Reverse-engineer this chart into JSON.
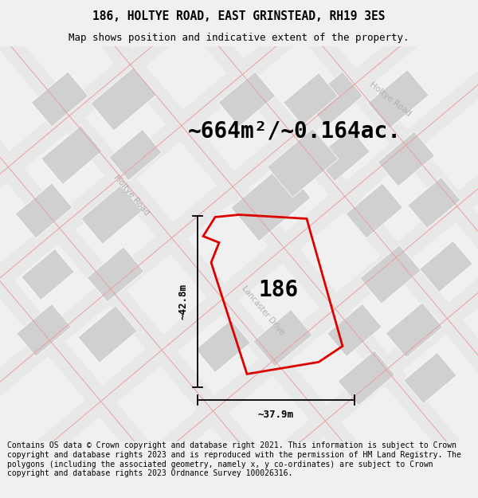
{
  "title": "186, HOLTYE ROAD, EAST GRINSTEAD, RH19 3ES",
  "subtitle": "Map shows position and indicative extent of the property.",
  "area_text": "~664m²/~0.164ac.",
  "label_186": "186",
  "dim_vertical": "~42.8m",
  "dim_horizontal": "~37.9m",
  "road_label_left": "Holtye Road",
  "road_label_right": "Holtye Road",
  "road_label_mid": "Lancaster Drive",
  "footer": "Contains OS data © Crown copyright and database right 2021. This information is subject to Crown copyright and database rights 2023 and is reproduced with the permission of HM Land Registry. The polygons (including the associated geometry, namely x, y co-ordinates) are subject to Crown copyright and database rights 2023 Ordnance Survey 100026316.",
  "bg_color": "#f0f0f0",
  "map_bg": "#ffffff",
  "property_color": "#dd0000",
  "road_line_color": "#e8a0a0",
  "road_bg_color": "#e8e8e8",
  "building_color": "#d0d0d0",
  "road_text_color": "#b0b0b0",
  "dim_line_color": "#000000",
  "title_fontsize": 10.5,
  "subtitle_fontsize": 9,
  "area_fontsize": 20,
  "label_fontsize": 20,
  "footer_fontsize": 7.0
}
